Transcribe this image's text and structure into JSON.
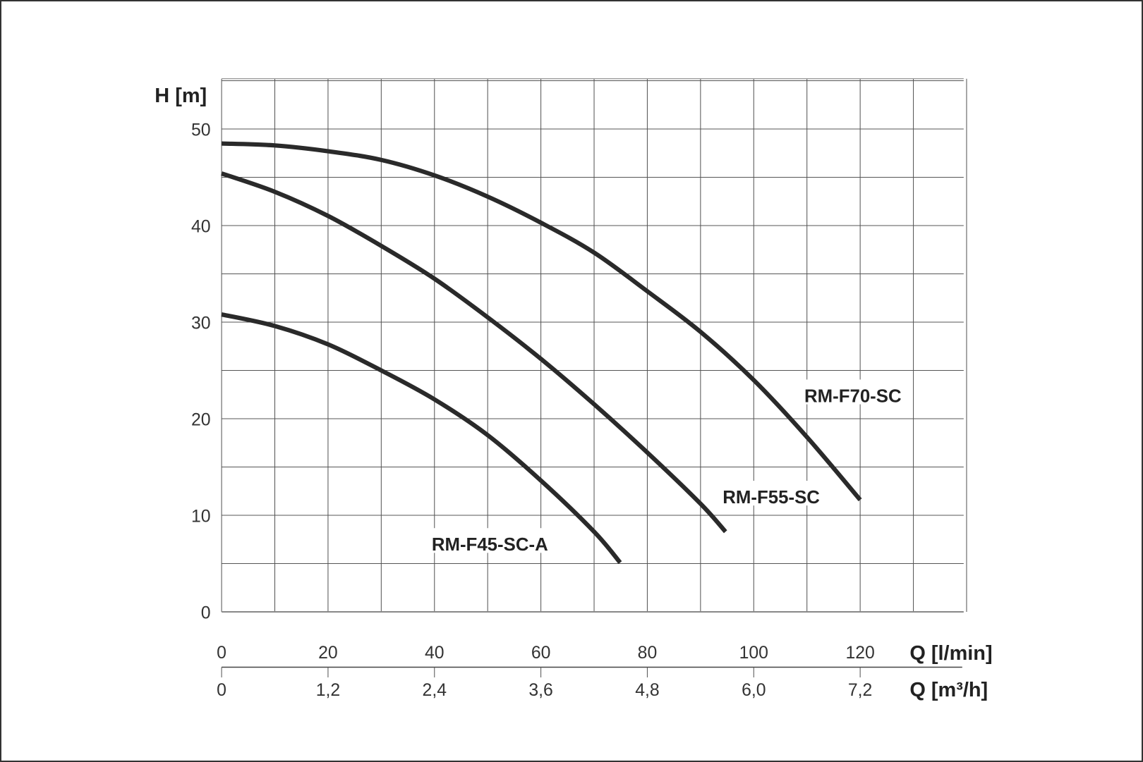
{
  "chart_data": {
    "type": "line",
    "title": "",
    "ylabel": "H [m]",
    "xlabel": "Q [l/min]",
    "xlabel_secondary": "Q [m³/h]",
    "xlim": [
      0,
      140
    ],
    "ylim": [
      0,
      55
    ],
    "grid": true,
    "y_ticks": [
      "0",
      "10",
      "20",
      "30",
      "40",
      "50"
    ],
    "x_ticks": [
      "0",
      "20",
      "40",
      "60",
      "80",
      "100",
      "120"
    ],
    "x_ticks_secondary": [
      "0",
      "1,2",
      "2,4",
      "3,6",
      "4,8",
      "6,0",
      "7,2"
    ],
    "line_color": "#2a2a2a",
    "series": [
      {
        "name": "RM-F70-SC",
        "x": [
          0,
          10,
          20,
          30,
          40,
          50,
          60,
          70,
          80,
          90,
          100,
          110,
          120
        ],
        "y": [
          48.5,
          48.3,
          47.7,
          46.8,
          45.2,
          43.0,
          40.3,
          37.2,
          33.2,
          29.0,
          24.0,
          18.1,
          11.6
        ]
      },
      {
        "name": "RM-F55-SC",
        "x": [
          0,
          10,
          20,
          30,
          40,
          50,
          60,
          70,
          80,
          90,
          94.7
        ],
        "y": [
          45.4,
          43.5,
          41.0,
          37.9,
          34.5,
          30.5,
          26.2,
          21.5,
          16.5,
          11.2,
          8.3
        ]
      },
      {
        "name": "RM-F45-SC-A",
        "x": [
          0,
          10,
          20,
          30,
          40,
          50,
          60,
          70,
          74.9
        ],
        "y": [
          30.8,
          29.6,
          27.7,
          25.0,
          22.0,
          18.3,
          13.6,
          8.3,
          5.1
        ]
      }
    ]
  }
}
